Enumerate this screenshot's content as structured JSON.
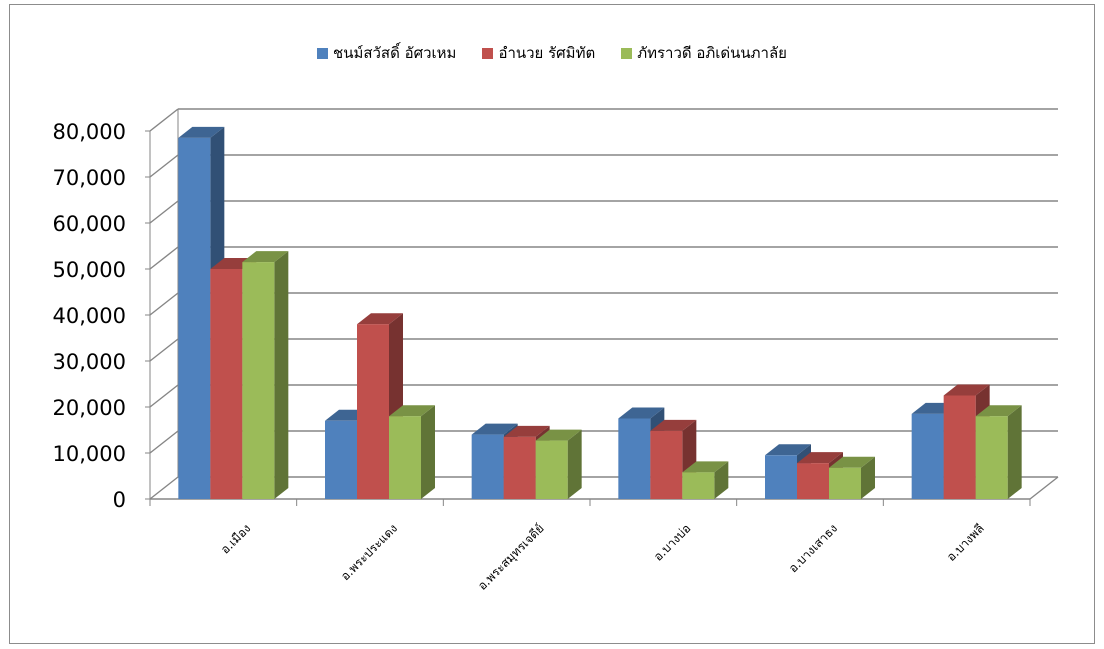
{
  "chart_data": {
    "type": "bar",
    "title": "",
    "xlabel": "",
    "ylabel": "",
    "ylim": [
      0,
      80000
    ],
    "yticks": [
      "0",
      "10,000",
      "20,000",
      "30,000",
      "40,000",
      "50,000",
      "60,000",
      "70,000",
      "80,000"
    ],
    "categories": [
      "อ.เมือง",
      "อ.พระประแดง",
      "อ.พระสมุทรเจดีย์",
      "อ.บางบ่อ",
      "อ.บางเสาธง",
      "อ.บางพลี"
    ],
    "legend_position": "top",
    "grid": true,
    "style": "3d-clustered-column",
    "series": [
      {
        "name": "ชนม์สวัสดิ์ อัศวเหม",
        "color": "#4f81bd",
        "values": [
          78500,
          17000,
          14000,
          17500,
          9500,
          18500
        ]
      },
      {
        "name": "อำนวย รัศมิทัต",
        "color": "#c0504d",
        "values": [
          50000,
          38000,
          13500,
          14800,
          7800,
          22500
        ]
      },
      {
        "name": "ภัทราวดี อภิเด่นนภาลัย",
        "color": "#9bbb59",
        "values": [
          51500,
          18000,
          12700,
          5800,
          6800,
          18000
        ]
      }
    ]
  }
}
